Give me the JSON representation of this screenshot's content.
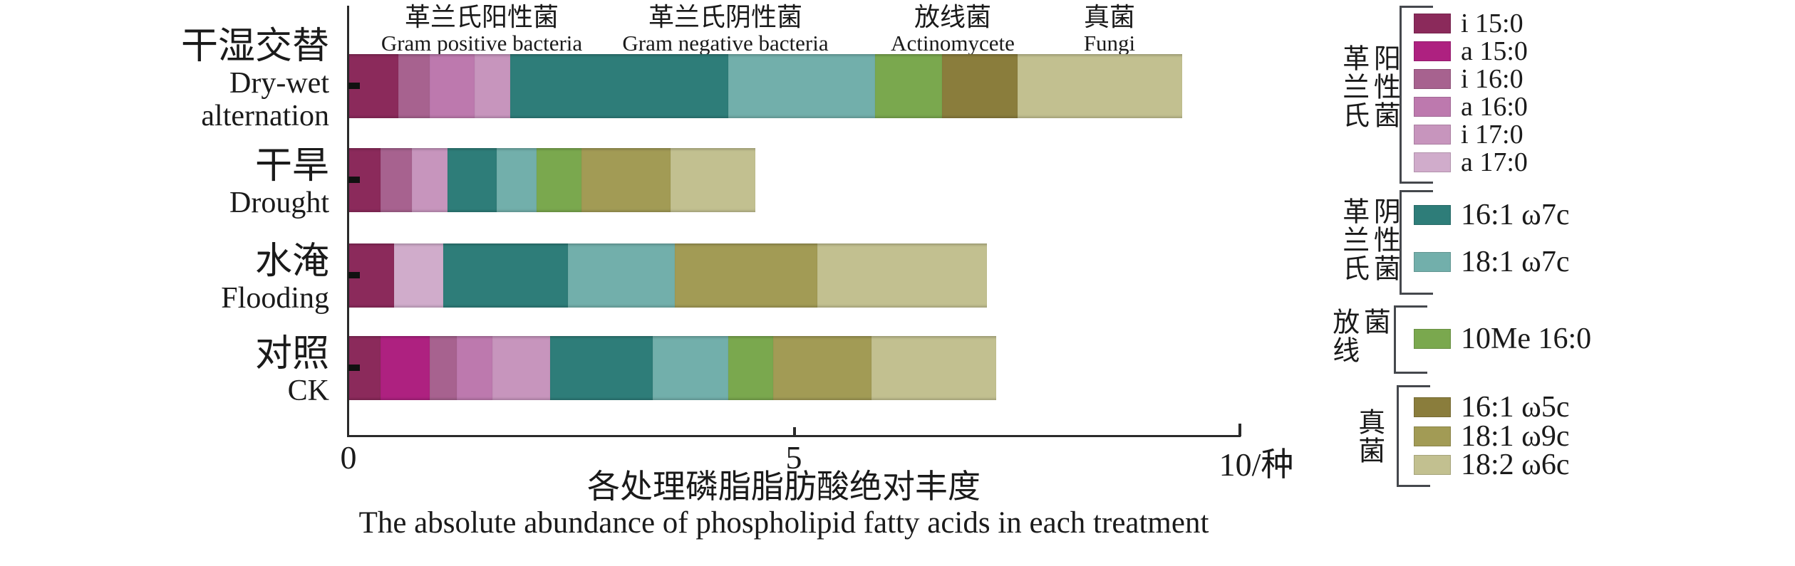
{
  "titles": {
    "zh": "各处理磷脂脂肪酸绝对丰度",
    "en": "The absolute abundance of phospholipid fatty acids in each treatment"
  },
  "axis": {
    "xticks": [
      {
        "value": 0,
        "label": "0"
      },
      {
        "value": 5,
        "label": "5"
      },
      {
        "value": 10,
        "label": "10/种"
      }
    ],
    "xlim": [
      0,
      10
    ]
  },
  "column_headers": [
    {
      "zh": "革兰氏阳性菌",
      "en": "Gram positive bacteria"
    },
    {
      "zh": "革兰氏阴性菌",
      "en": "Gram negative bacteria"
    },
    {
      "zh": "放线菌",
      "en": "Actinomycete"
    },
    {
      "zh": "真菌",
      "en": "Fungi"
    }
  ],
  "treatments": [
    {
      "zh": "干湿交替",
      "en_lines": [
        "Dry-wet",
        "alternation"
      ]
    },
    {
      "zh": "干旱",
      "en_lines": [
        "Drought"
      ]
    },
    {
      "zh": "水淹",
      "en_lines": [
        "Flooding"
      ]
    },
    {
      "zh": "对照",
      "en_lines": [
        "CK"
      ]
    }
  ],
  "legend": {
    "groups": [
      {
        "label_zh": "革兰氏阳性菌",
        "label_cols": "革兰氏\n阳性菌",
        "items": [
          {
            "label": "i 15:0",
            "color": "#8b2a5b"
          },
          {
            "label": "a 15:0",
            "color": "#ae2180"
          },
          {
            "label": "i 16:0",
            "color": "#a7628f"
          },
          {
            "label": "a 16:0",
            "color": "#bd79ae"
          },
          {
            "label": "i 17:0",
            "color": "#c795bd"
          },
          {
            "label": "a 17:0",
            "color": "#d0accb"
          }
        ]
      },
      {
        "label_zh": "革兰氏阴性菌",
        "label_cols": "革兰氏\n阴性菌",
        "items": [
          {
            "label": "16:1 ω7c",
            "color": "#2e7d79"
          },
          {
            "label": "18:1 ω7c",
            "color": "#72afab"
          }
        ]
      },
      {
        "label_zh": "放线菌",
        "label_cols": "放线\n菌",
        "items": [
          {
            "label": "10Me 16:0",
            "color": "#7aa84e"
          }
        ]
      },
      {
        "label_zh": "真菌",
        "label_cols": "真菌",
        "items": [
          {
            "label": "16:1 ω5c",
            "color": "#8a7d3c"
          },
          {
            "label": "18:1 ω9c",
            "color": "#a29b55"
          },
          {
            "label": "18:2 ω6c",
            "color": "#c2c090"
          }
        ]
      }
    ]
  },
  "chart_data": {
    "type": "bar",
    "stacked": true,
    "orientation": "horizontal",
    "title": "各处理磷脂脂肪酸绝对丰度",
    "title_en": "The absolute abundance of phospholipid fatty acids in each treatment",
    "xlabel": "",
    "ylabel": "",
    "xlim": [
      0,
      10
    ],
    "xticks": [
      0,
      5,
      10
    ],
    "x_unit": "种",
    "grid": false,
    "legend_position": "right",
    "categories": [
      "干湿交替 Dry-wet alternation",
      "干旱 Drought",
      "水淹 Flooding",
      "对照 CK"
    ],
    "series": [
      {
        "name": "i 15:0",
        "group": "革兰氏阳性菌 Gram positive bacteria",
        "color": "#8b2a5b",
        "values": [
          0.55,
          0.35,
          0.5,
          0.35
        ]
      },
      {
        "name": "a 15:0",
        "group": "革兰氏阳性菌 Gram positive bacteria",
        "color": "#ae2180",
        "values": [
          0,
          0,
          0,
          0.55
        ]
      },
      {
        "name": "i 16:0",
        "group": "革兰氏阳性菌 Gram positive bacteria",
        "color": "#a7628f",
        "values": [
          0.35,
          0.35,
          0,
          0.3
        ]
      },
      {
        "name": "a 16:0",
        "group": "革兰氏阳性菌 Gram positive bacteria",
        "color": "#bd79ae",
        "values": [
          0.5,
          0,
          0,
          0.4
        ]
      },
      {
        "name": "i 17:0",
        "group": "革兰氏阳性菌 Gram positive bacteria",
        "color": "#c795bd",
        "values": [
          0.4,
          0.4,
          0,
          0.65
        ]
      },
      {
        "name": "a 17:0",
        "group": "革兰氏阳性菌 Gram positive bacteria",
        "color": "#d0accb",
        "values": [
          0,
          0,
          0.55,
          0
        ]
      },
      {
        "name": "16:1 ω7c",
        "group": "革兰氏阴性菌 Gram negative bacteria",
        "color": "#2e7d79",
        "values": [
          2.45,
          0.55,
          1.4,
          1.15
        ]
      },
      {
        "name": "18:1 ω7c",
        "group": "革兰氏阴性菌 Gram negative bacteria",
        "color": "#72afab",
        "values": [
          1.65,
          0.45,
          1.2,
          0.85
        ]
      },
      {
        "name": "10Me 16:0",
        "group": "放线菌 Actinomycete",
        "color": "#7aa84e",
        "values": [
          0.75,
          0.5,
          0,
          0.5
        ]
      },
      {
        "name": "16:1 ω5c",
        "group": "真菌 Fungi",
        "color": "#8a7d3c",
        "values": [
          0.85,
          0,
          0,
          0
        ]
      },
      {
        "name": "18:1 ω9c",
        "group": "真菌 Fungi",
        "color": "#a29b55",
        "values": [
          0,
          1.0,
          1.6,
          1.1
        ]
      },
      {
        "name": "18:2 ω6c",
        "group": "真菌 Fungi",
        "color": "#c2c090",
        "values": [
          1.85,
          0.95,
          1.9,
          1.4
        ]
      }
    ],
    "totals": [
      9.35,
      4.55,
      7.15,
      7.25
    ]
  }
}
